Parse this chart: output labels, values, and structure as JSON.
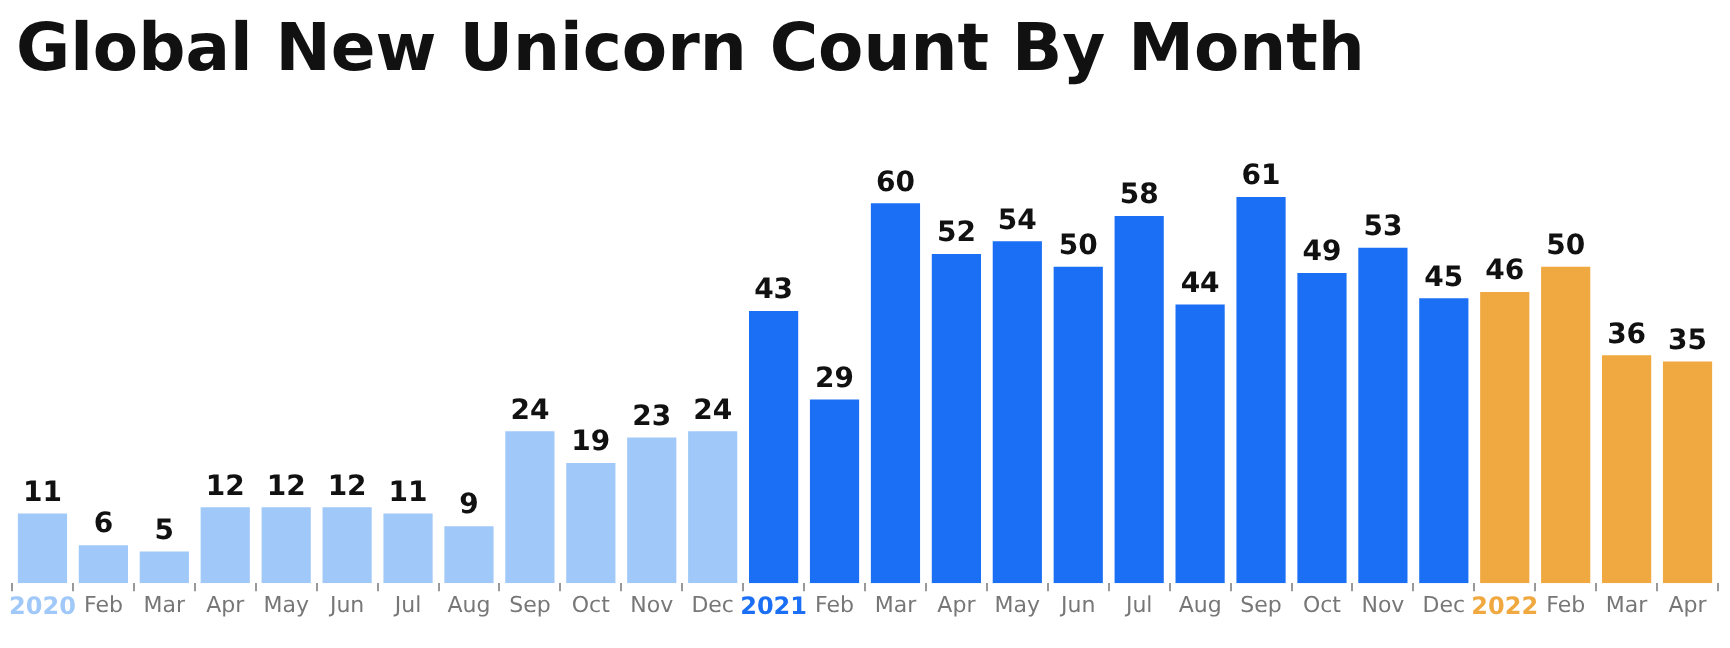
{
  "chart_data": {
    "type": "bar",
    "title": "Global New Unicorn Count By Month",
    "categories": [
      "2020",
      "Feb",
      "Mar",
      "Apr",
      "May",
      "Jun",
      "Jul",
      "Aug",
      "Sep",
      "Oct",
      "Nov",
      "Dec",
      "2021",
      "Feb",
      "Mar",
      "Apr",
      "May",
      "Jun",
      "Jul",
      "Aug",
      "Sep",
      "Oct",
      "Nov",
      "Dec",
      "2022",
      "Feb",
      "Mar",
      "Apr"
    ],
    "values": [
      11,
      6,
      5,
      12,
      12,
      12,
      11,
      9,
      24,
      19,
      23,
      24,
      43,
      29,
      60,
      52,
      54,
      50,
      58,
      44,
      61,
      49,
      53,
      45,
      46,
      50,
      36,
      35
    ],
    "colors": [
      "#a0c8f8",
      "#a0c8f8",
      "#a0c8f8",
      "#a0c8f8",
      "#a0c8f8",
      "#a0c8f8",
      "#a0c8f8",
      "#a0c8f8",
      "#a0c8f8",
      "#a0c8f8",
      "#a0c8f8",
      "#a0c8f8",
      "#1a6ff4",
      "#1a6ff4",
      "#1a6ff4",
      "#1a6ff4",
      "#1a6ff4",
      "#1a6ff4",
      "#1a6ff4",
      "#1a6ff4",
      "#1a6ff4",
      "#1a6ff4",
      "#1a6ff4",
      "#1a6ff4",
      "#f0a940",
      "#f0a940",
      "#f0a940",
      "#f0a940"
    ],
    "data_labels": true,
    "grid": false,
    "legend": false
  }
}
